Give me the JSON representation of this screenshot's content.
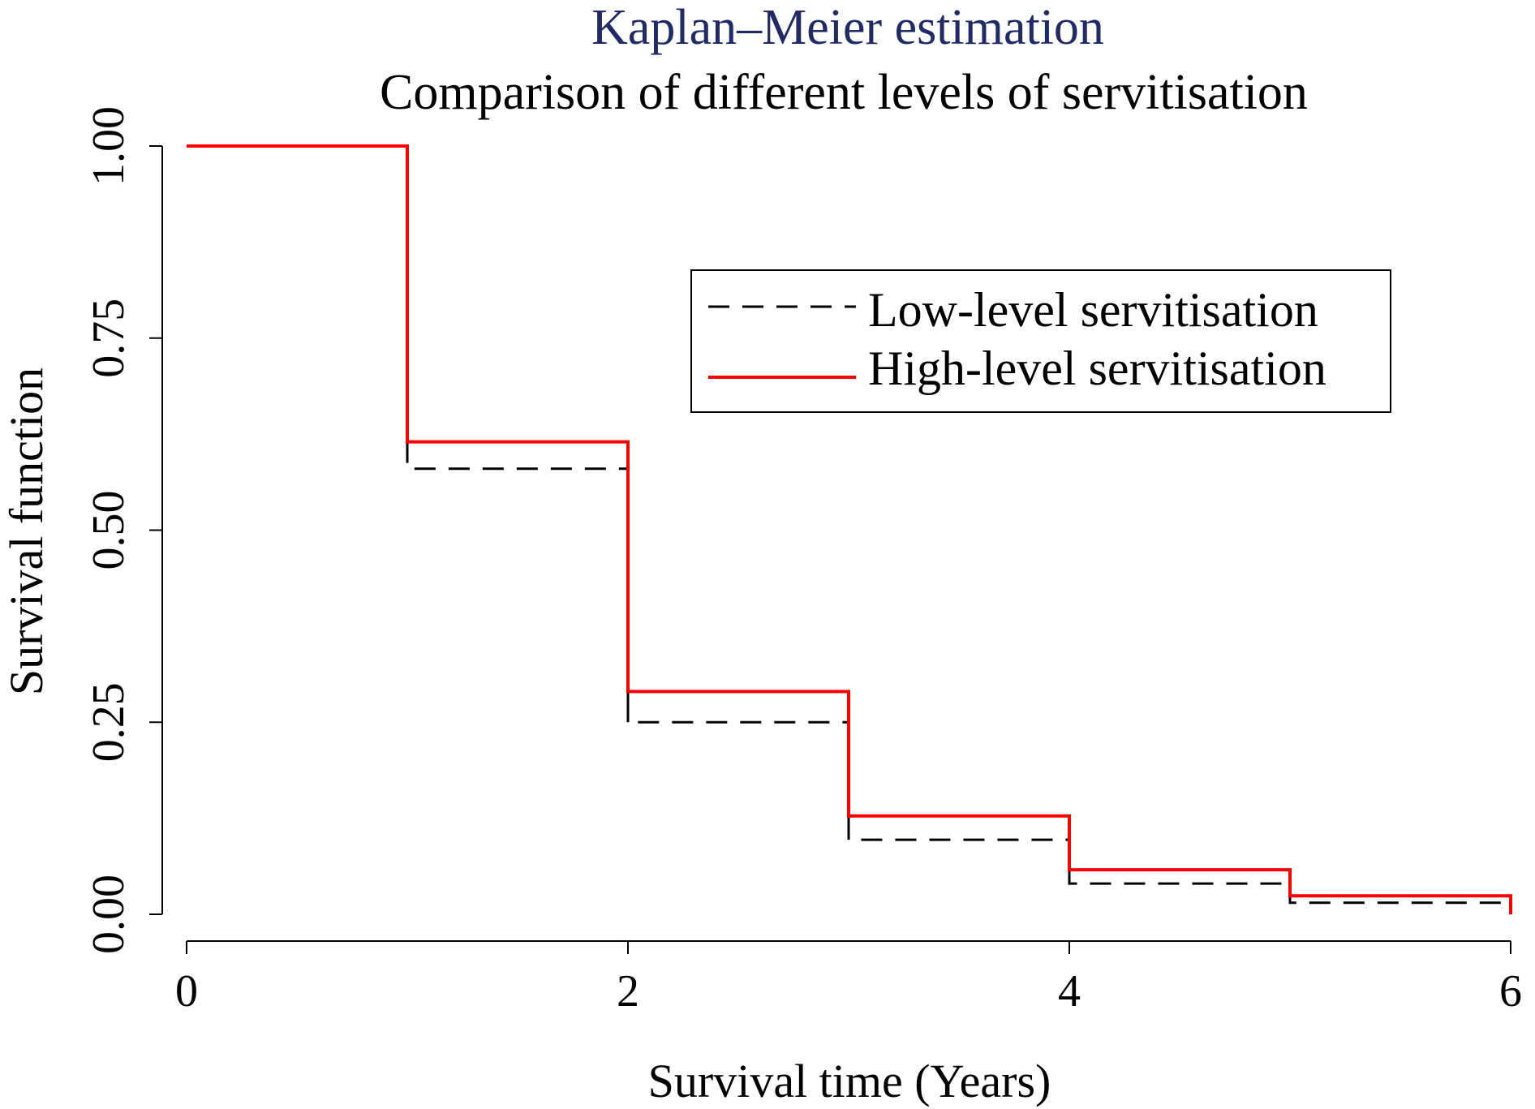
{
  "chart_data": {
    "type": "line",
    "title": "Kaplan–Meier estimation",
    "subtitle": "Comparison of different levels of servitisation",
    "xlabel": "Survival time (Years)",
    "ylabel": "Survival function",
    "xlim": [
      0,
      6
    ],
    "ylim": [
      0,
      1
    ],
    "xticks": [
      "0",
      "2",
      "4",
      "6"
    ],
    "xtick_values": [
      0,
      2,
      4,
      6
    ],
    "yticks": [
      "0.00",
      "0.25",
      "0.50",
      "0.75",
      "1.00"
    ],
    "ytick_values": [
      0,
      0.25,
      0.5,
      0.75,
      1.0
    ],
    "grid": false,
    "legend_position": "top-right",
    "colors": {
      "title": "#1f2a6b",
      "high": "#ff0000",
      "low": "#000000"
    },
    "series": [
      {
        "name": "Low-level servitisation",
        "style": "dashed",
        "color": "#000000",
        "x": [
          1,
          2,
          3,
          4,
          5,
          6
        ],
        "y": [
          0.58,
          0.25,
          0.097,
          0.04,
          0.015,
          0.015
        ]
      },
      {
        "name": "High-level servitisation",
        "style": "solid",
        "color": "#ff0000",
        "x": [
          0,
          1,
          2,
          3,
          4,
          5,
          6
        ],
        "y": [
          1.0,
          0.615,
          0.29,
          0.128,
          0.058,
          0.024,
          0.0
        ]
      }
    ]
  }
}
